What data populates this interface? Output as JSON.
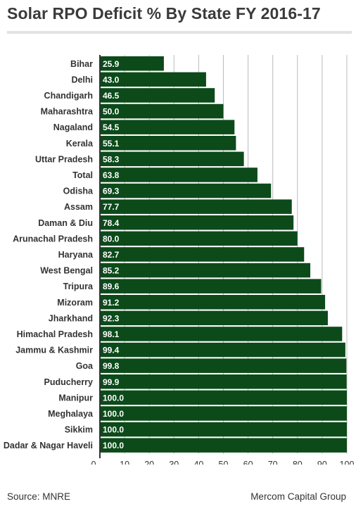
{
  "title": "Solar RPO Deficit % By State FY 2016-17",
  "source": "Source: MNRE",
  "credit": "Mercom Capital Group",
  "colors": {
    "bar": "#0c4a1a",
    "grid": "#bbbbbb",
    "axis": "#333333",
    "bar_label": "#ffffff"
  },
  "chart_data": {
    "type": "bar",
    "orientation": "horizontal",
    "title": "Solar RPO Deficit % By State FY 2016-17",
    "xlabel": "",
    "ylabel": "",
    "xlim": [
      0,
      102
    ],
    "x_ticks": [
      0,
      10,
      20,
      30,
      40,
      50,
      60,
      70,
      80,
      90,
      100
    ],
    "grid": "vertical",
    "data_labels": "inside-left",
    "categories": [
      "Bihar",
      "Delhi",
      "Chandigarh",
      "Maharashtra",
      "Nagaland",
      "Kerala",
      "Uttar Pradesh",
      "Total",
      "Odisha",
      "Assam",
      "Daman & Diu",
      "Arunachal Pradesh",
      "Haryana",
      "West Bengal",
      "Tripura",
      "Mizoram",
      "Jharkhand",
      "Himachal Pradesh",
      "Jammu & Kashmir",
      "Goa",
      "Puducherry",
      "Manipur",
      "Meghalaya",
      "Sikkim",
      "Dadar & Nagar Haveli"
    ],
    "values": [
      25.9,
      43.0,
      46.5,
      50.0,
      54.5,
      55.1,
      58.3,
      63.8,
      69.3,
      77.7,
      78.4,
      80.0,
      82.7,
      85.2,
      89.6,
      91.2,
      92.3,
      98.1,
      99.4,
      99.8,
      99.9,
      100.0,
      100.0,
      100.0,
      100.0
    ],
    "value_labels": [
      "25.9",
      "43.0",
      "46.5",
      "50.0",
      "54.5",
      "55.1",
      "58.3",
      "63.8",
      "69.3",
      "77.7",
      "78.4",
      "80.0",
      "82.7",
      "85.2",
      "89.6",
      "91.2",
      "92.3",
      "98.1",
      "99.4",
      "99.8",
      "99.9",
      "100.0",
      "100.0",
      "100.0",
      "100.0"
    ]
  }
}
